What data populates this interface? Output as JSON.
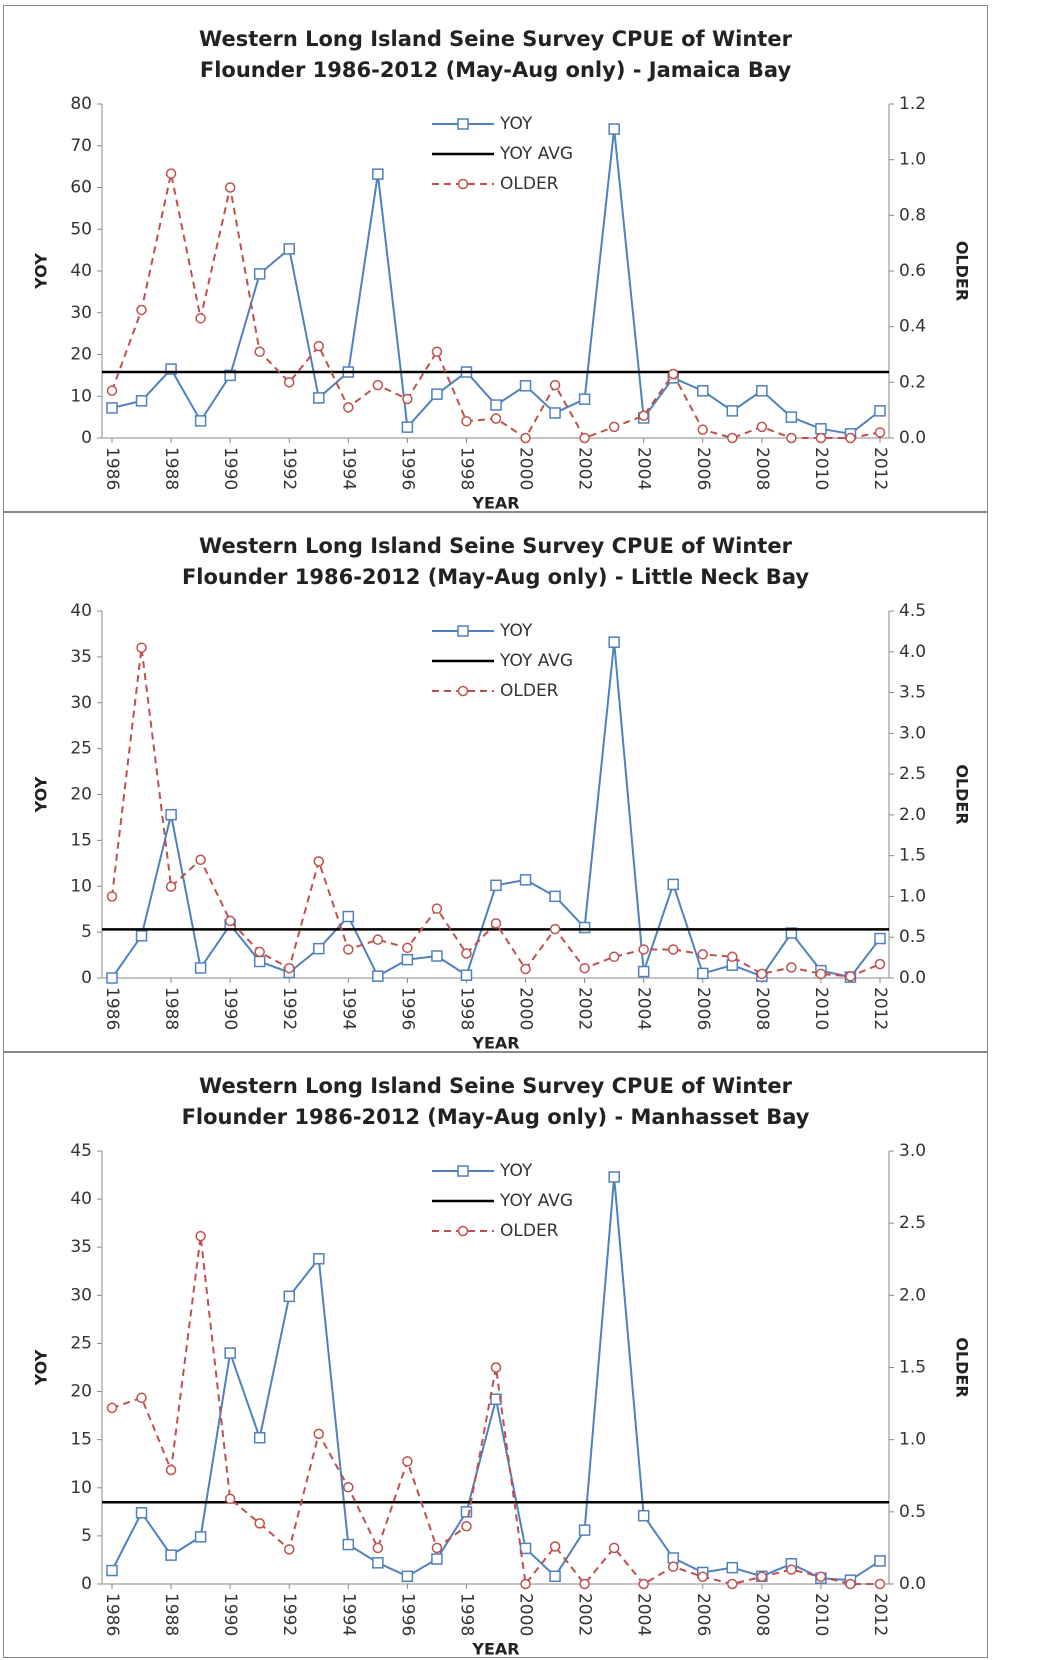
{
  "chart_data": [
    {
      "type": "line",
      "title": "Western Long Island Seine Survey CPUE of Winter Flounder 1986-2012 (May-Aug only) - Jamaica Bay",
      "x_label": "YEAR",
      "y_label": "YOY",
      "y2_label": "OLDER",
      "x": [
        1986,
        1987,
        1988,
        1989,
        1990,
        1991,
        1992,
        1993,
        1994,
        1995,
        1996,
        1997,
        1998,
        1999,
        2000,
        2001,
        2002,
        2003,
        2004,
        2005,
        2006,
        2007,
        2008,
        2009,
        2010,
        2011,
        2012
      ],
      "xlim": [
        1986,
        2012
      ],
      "xticks": [
        1986,
        1988,
        1990,
        1992,
        1994,
        1996,
        1998,
        2000,
        2002,
        2004,
        2006,
        2008,
        2010,
        2012
      ],
      "ylim": [
        0,
        80
      ],
      "yticks": [
        0,
        10,
        20,
        30,
        40,
        50,
        60,
        70,
        80
      ],
      "y2lim": [
        0,
        1.2
      ],
      "y2ticks": [
        {
          "value": 0,
          "label": "0.0"
        },
        {
          "value": 0.2,
          "label": "0.2"
        },
        {
          "value": 0.4,
          "label": "0.4"
        },
        {
          "value": 0.6,
          "label": "0.6"
        },
        {
          "value": 0.8,
          "label": "0.8"
        },
        {
          "value": 1,
          "label": "1.0"
        },
        {
          "value": 1.2,
          "label": "1.2"
        }
      ],
      "series": [
        {
          "name": "YOY",
          "color": "#4f81bd",
          "marker": "square",
          "values": [
            7.2,
            8.9,
            16.5,
            4.1,
            15,
            39.3,
            45.3,
            9.6,
            15.8,
            63.2,
            2.6,
            10.5,
            15.8,
            7.9,
            12.5,
            6,
            9.3,
            74,
            4.8,
            14.4,
            11.3,
            6.5,
            11.3,
            5,
            2.2,
            1,
            6.5
          ]
        },
        {
          "name": "YOY AVG",
          "color": "#000000",
          "value": 15.8
        },
        {
          "name": "OLDER",
          "color": "#c0504d",
          "marker": "circle",
          "dashed": true,
          "axis": "y2",
          "values": [
            0.17,
            0.46,
            0.95,
            0.43,
            0.9,
            0.31,
            0.2,
            0.33,
            0.11,
            0.19,
            0.14,
            0.31,
            0.06,
            0.07,
            0,
            0.19,
            0,
            0.04,
            0.08,
            0.23,
            0.03,
            0,
            0.04,
            0,
            0,
            0,
            0.02
          ]
        }
      ]
    },
    {
      "type": "line",
      "title": "Western Long Island Seine Survey CPUE of Winter Flounder 1986-2012 (May-Aug only) - Little Neck Bay",
      "x_label": "YEAR",
      "y_label": "YOY",
      "y2_label": "OLDER",
      "x": [
        1986,
        1987,
        1988,
        1989,
        1990,
        1991,
        1992,
        1993,
        1994,
        1995,
        1996,
        1997,
        1998,
        1999,
        2000,
        2001,
        2002,
        2003,
        2004,
        2005,
        2006,
        2007,
        2008,
        2009,
        2010,
        2011,
        2012
      ],
      "xlim": [
        1986,
        2012
      ],
      "xticks": [
        1986,
        1988,
        1990,
        1992,
        1994,
        1996,
        1998,
        2000,
        2002,
        2004,
        2006,
        2008,
        2010,
        2012
      ],
      "ylim": [
        0,
        40
      ],
      "yticks": [
        0,
        5,
        10,
        15,
        20,
        25,
        30,
        35,
        40
      ],
      "y2lim": [
        0,
        4.5
      ],
      "y2ticks": [
        {
          "value": 0,
          "label": "0.0"
        },
        {
          "value": 0.5,
          "label": "0.5"
        },
        {
          "value": 1,
          "label": "1.0"
        },
        {
          "value": 1.5,
          "label": "1.5"
        },
        {
          "value": 2,
          "label": "2.0"
        },
        {
          "value": 2.5,
          "label": "2.5"
        },
        {
          "value": 3,
          "label": "3.0"
        },
        {
          "value": 3.5,
          "label": "3.5"
        },
        {
          "value": 4,
          "label": "4.0"
        },
        {
          "value": 4.5,
          "label": "4.5"
        }
      ],
      "series": [
        {
          "name": "YOY",
          "color": "#4f81bd",
          "marker": "square",
          "values": [
            0,
            4.6,
            17.8,
            1.1,
            5.8,
            1.8,
            0.6,
            3.2,
            6.7,
            0.2,
            2,
            2.4,
            0.3,
            10.1,
            10.7,
            8.9,
            5.5,
            36.6,
            0.7,
            10.2,
            0.5,
            1.4,
            0.2,
            4.9,
            0.8,
            0.1,
            4.3
          ]
        },
        {
          "name": "YOY AVG",
          "color": "#000000",
          "value": 5.3
        },
        {
          "name": "OLDER",
          "color": "#c0504d",
          "marker": "circle",
          "dashed": true,
          "axis": "y2",
          "values": [
            1,
            4.05,
            1.12,
            1.45,
            0.7,
            0.32,
            0.12,
            1.43,
            0.35,
            0.47,
            0.37,
            0.85,
            0.3,
            0.67,
            0.11,
            0.6,
            0.12,
            0.26,
            0.35,
            0.35,
            0.29,
            0.26,
            0.05,
            0.13,
            0.05,
            0.02,
            0.17
          ]
        }
      ]
    },
    {
      "type": "line",
      "title": "Western Long Island Seine Survey CPUE of Winter Flounder 1986-2012 (May-Aug only) - Manhasset Bay",
      "x_label": "YEAR",
      "y_label": "YOY",
      "y2_label": "OLDER",
      "x": [
        1986,
        1987,
        1988,
        1989,
        1990,
        1991,
        1992,
        1993,
        1994,
        1995,
        1996,
        1997,
        1998,
        1999,
        2000,
        2001,
        2002,
        2003,
        2004,
        2005,
        2006,
        2007,
        2008,
        2009,
        2010,
        2011,
        2012
      ],
      "xlim": [
        1986,
        2012
      ],
      "xticks": [
        1986,
        1988,
        1990,
        1992,
        1994,
        1996,
        1998,
        2000,
        2002,
        2004,
        2006,
        2008,
        2010,
        2012
      ],
      "ylim": [
        0,
        45
      ],
      "yticks": [
        0,
        5,
        10,
        15,
        20,
        25,
        30,
        35,
        40,
        45
      ],
      "y2lim": [
        0,
        3
      ],
      "y2ticks": [
        {
          "value": 0,
          "label": "0.0"
        },
        {
          "value": 0.5,
          "label": "0.5"
        },
        {
          "value": 1,
          "label": "1.0"
        },
        {
          "value": 1.5,
          "label": "1.5"
        },
        {
          "value": 2,
          "label": "2.0"
        },
        {
          "value": 2.5,
          "label": "2.5"
        },
        {
          "value": 3,
          "label": "3.0"
        }
      ],
      "series": [
        {
          "name": "YOY",
          "color": "#4f81bd",
          "marker": "square",
          "values": [
            1.4,
            7.4,
            3,
            4.9,
            24,
            15.2,
            29.9,
            33.8,
            4.1,
            2.2,
            0.8,
            2.6,
            7.5,
            19.2,
            3.7,
            0.8,
            5.6,
            42.3,
            7.1,
            2.7,
            1.2,
            1.7,
            0.8,
            2.1,
            0.6,
            0.4,
            2.4
          ]
        },
        {
          "name": "YOY AVG",
          "color": "#000000",
          "value": 8.5
        },
        {
          "name": "OLDER",
          "color": "#c0504d",
          "marker": "circle",
          "dashed": true,
          "axis": "y2",
          "values": [
            1.22,
            1.29,
            0.79,
            2.41,
            0.59,
            0.42,
            0.24,
            1.04,
            0.67,
            0.25,
            0.85,
            0.25,
            0.4,
            1.5,
            0,
            0.26,
            0,
            0.25,
            0,
            0.12,
            0.05,
            0,
            0.05,
            0.1,
            0.05,
            0,
            0
          ]
        }
      ]
    }
  ]
}
